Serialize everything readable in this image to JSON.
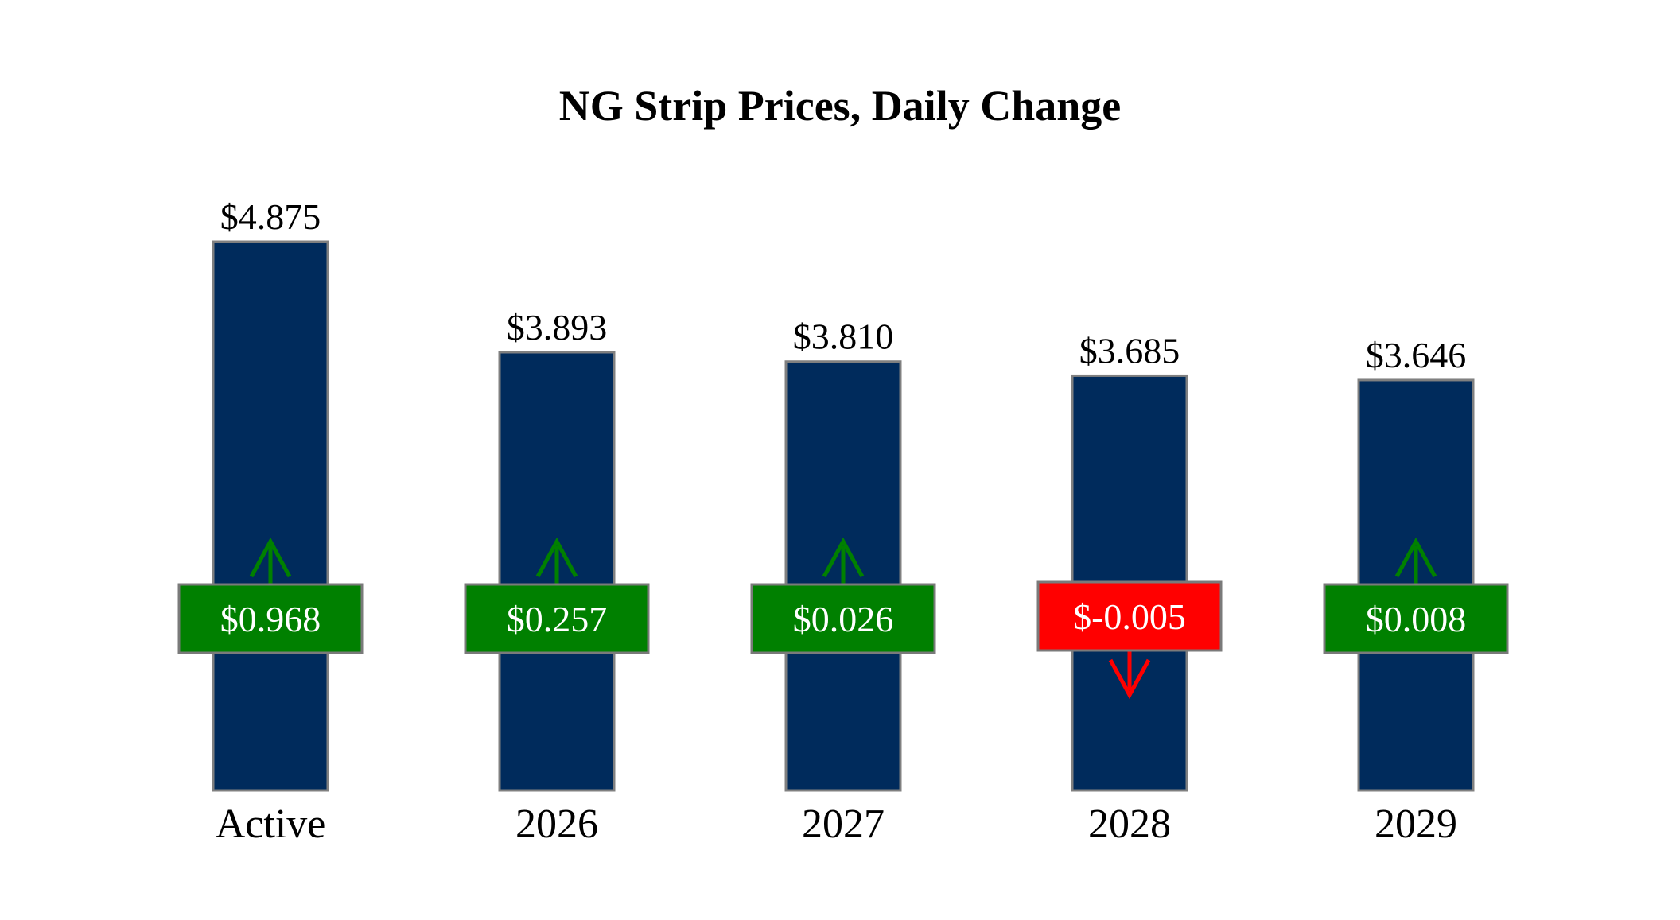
{
  "chart_data": {
    "type": "bar",
    "title": "NG Strip Prices, Daily Change",
    "categories": [
      "Active",
      "2026",
      "2027",
      "2028",
      "2029"
    ],
    "values": [
      4.875,
      3.893,
      3.81,
      3.685,
      3.646
    ],
    "value_labels": [
      "$4.875",
      "$3.893",
      "$3.810",
      "$3.685",
      "$3.646"
    ],
    "changes": [
      0.968,
      0.257,
      0.026,
      -0.005,
      0.008
    ],
    "change_labels": [
      "$0.968",
      "$0.257",
      "$0.026",
      "$-0.005",
      "$0.008"
    ],
    "xlabel": "",
    "ylabel": "",
    "ylim": [
      0,
      4.875
    ],
    "grid": false,
    "legend": "none",
    "colors": {
      "bar": "#002b5c",
      "bar_edge": "#808080",
      "positive": "#008000",
      "negative": "#ff0000",
      "badge_edge": "#7a7a7a",
      "badge_text": "#ffffff",
      "text": "#000000"
    }
  }
}
